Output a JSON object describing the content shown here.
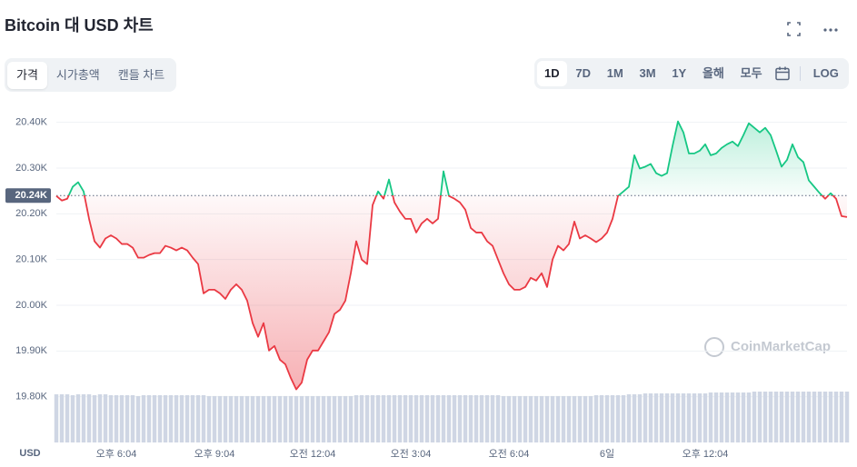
{
  "header": {
    "title": "Bitcoin 대 USD 차트",
    "tabs": [
      "가격",
      "시가총액",
      "캔들 차트"
    ],
    "ranges": [
      "1D",
      "7D",
      "1M",
      "3M",
      "1Y",
      "올해",
      "모두"
    ],
    "log": "LOG"
  },
  "chart_data": {
    "type": "line",
    "categories": [
      null,
      null,
      null,
      null,
      null,
      null,
      null,
      null,
      null,
      null,
      null,
      "오후 6:04",
      null,
      null,
      null,
      null,
      null,
      null,
      null,
      null,
      null,
      null,
      null,
      null,
      null,
      null,
      null,
      null,
      null,
      "오후 9:04",
      null,
      null,
      null,
      null,
      null,
      null,
      null,
      null,
      null,
      null,
      null,
      null,
      null,
      null,
      null,
      null,
      null,
      "오전 12:04",
      null,
      null,
      null,
      null,
      null,
      null,
      null,
      null,
      null,
      null,
      null,
      null,
      null,
      null,
      null,
      null,
      null,
      "오전 3:04",
      null,
      null,
      null,
      null,
      null,
      null,
      null,
      null,
      null,
      null,
      null,
      null,
      null,
      null,
      null,
      null,
      null,
      "오전 6:04",
      null,
      null,
      null,
      null,
      null,
      null,
      null,
      null,
      null,
      null,
      null,
      null,
      null,
      null,
      null,
      null,
      null,
      "6일",
      null,
      null,
      null,
      null,
      null,
      null,
      null,
      null,
      null,
      null,
      null,
      null,
      null,
      null,
      null,
      null,
      null,
      "오후 12:04",
      null,
      null,
      null,
      null,
      null,
      null,
      null,
      null,
      null,
      null,
      null,
      null,
      null,
      null,
      null,
      null,
      null,
      null,
      null,
      null,
      null,
      null,
      null,
      null,
      null,
      null
    ],
    "values": [
      20239,
      20229,
      20233,
      20259,
      20269,
      20249,
      20189,
      20140,
      20126,
      20146,
      20153,
      20146,
      20134,
      20134,
      20126,
      20104,
      20104,
      20110,
      20114,
      20114,
      20130,
      20126,
      20120,
      20126,
      20120,
      20104,
      20090,
      20026,
      20034,
      20034,
      20026,
      20014,
      20034,
      20046,
      20034,
      20010,
      19961,
      19931,
      19961,
      19901,
      19911,
      19881,
      19871,
      19841,
      19816,
      19831,
      19881,
      19901,
      19901,
      19921,
      19941,
      19981,
      19990,
      20010,
      20070,
      20140,
      20100,
      20090,
      20219,
      20249,
      20233,
      20275,
      20225,
      20205,
      20189,
      20189,
      20159,
      20179,
      20189,
      20179,
      20189,
      20293,
      20239,
      20233,
      20225,
      20209,
      20169,
      20159,
      20159,
      20140,
      20130,
      20100,
      20070,
      20046,
      20034,
      20034,
      20040,
      20060,
      20054,
      20070,
      20040,
      20100,
      20130,
      20120,
      20134,
      20183,
      20146,
      20153,
      20146,
      20138,
      20146,
      20159,
      20189,
      20239,
      20249,
      20259,
      20328,
      20299,
      20303,
      20309,
      20289,
      20283,
      20289,
      20348,
      20402,
      20378,
      20332,
      20332,
      20338,
      20352,
      20328,
      20332,
      20344,
      20352,
      20358,
      20348,
      20372,
      20398,
      20388,
      20378,
      20388,
      20372,
      20338,
      20303,
      20318,
      20352,
      20324,
      20313,
      20273,
      20259,
      20245,
      20233,
      20245,
      20233,
      20195,
      20193
    ],
    "volume": [
      54,
      54,
      54,
      53,
      54,
      54,
      54,
      53,
      54,
      54,
      53,
      53,
      53,
      53,
      53,
      52,
      53,
      53,
      53,
      53,
      53,
      53,
      53,
      53,
      53,
      53,
      53,
      53,
      52,
      52,
      52,
      52,
      52,
      52,
      52,
      52,
      52,
      52,
      52,
      52,
      52,
      52,
      52,
      52,
      52,
      52,
      52,
      52,
      52,
      52,
      52,
      52,
      52,
      52,
      52,
      53,
      53,
      53,
      53,
      53,
      53,
      53,
      53,
      53,
      53,
      53,
      53,
      53,
      53,
      53,
      53,
      53,
      53,
      53,
      53,
      53,
      53,
      53,
      53,
      53,
      53,
      53,
      52,
      52,
      52,
      52,
      52,
      52,
      52,
      52,
      52,
      52,
      52,
      52,
      52,
      52,
      52,
      52,
      52,
      53,
      53,
      53,
      53,
      53,
      53,
      54,
      54,
      54,
      55,
      55,
      55,
      55,
      55,
      55,
      55,
      55,
      55,
      55,
      55,
      55,
      56,
      56,
      56,
      56,
      56,
      56,
      56,
      56,
      57,
      57,
      57,
      57,
      57,
      57,
      57,
      57,
      57,
      57,
      57,
      57,
      57,
      57,
      57,
      57,
      57,
      57
    ],
    "ylim": [
      19700,
      20445
    ],
    "yticks": [
      {
        "value": 19800,
        "label": "19.80K"
      },
      {
        "value": 19900,
        "label": "19.90K"
      },
      {
        "value": 20000,
        "label": "20.00K"
      },
      {
        "value": 20100,
        "label": "20.10K"
      },
      {
        "value": 20200,
        "label": "20.20K"
      },
      {
        "value": 20300,
        "label": "20.30K"
      },
      {
        "value": 20400,
        "label": "20.40K"
      }
    ],
    "reference": {
      "value": 20240,
      "label": "20.24K"
    },
    "up_color": "#16c784",
    "down_color": "#ea3943",
    "volume_color": "#cfd6e4",
    "grid": true,
    "currency": "USD",
    "watermark": "CoinMarketCap"
  }
}
